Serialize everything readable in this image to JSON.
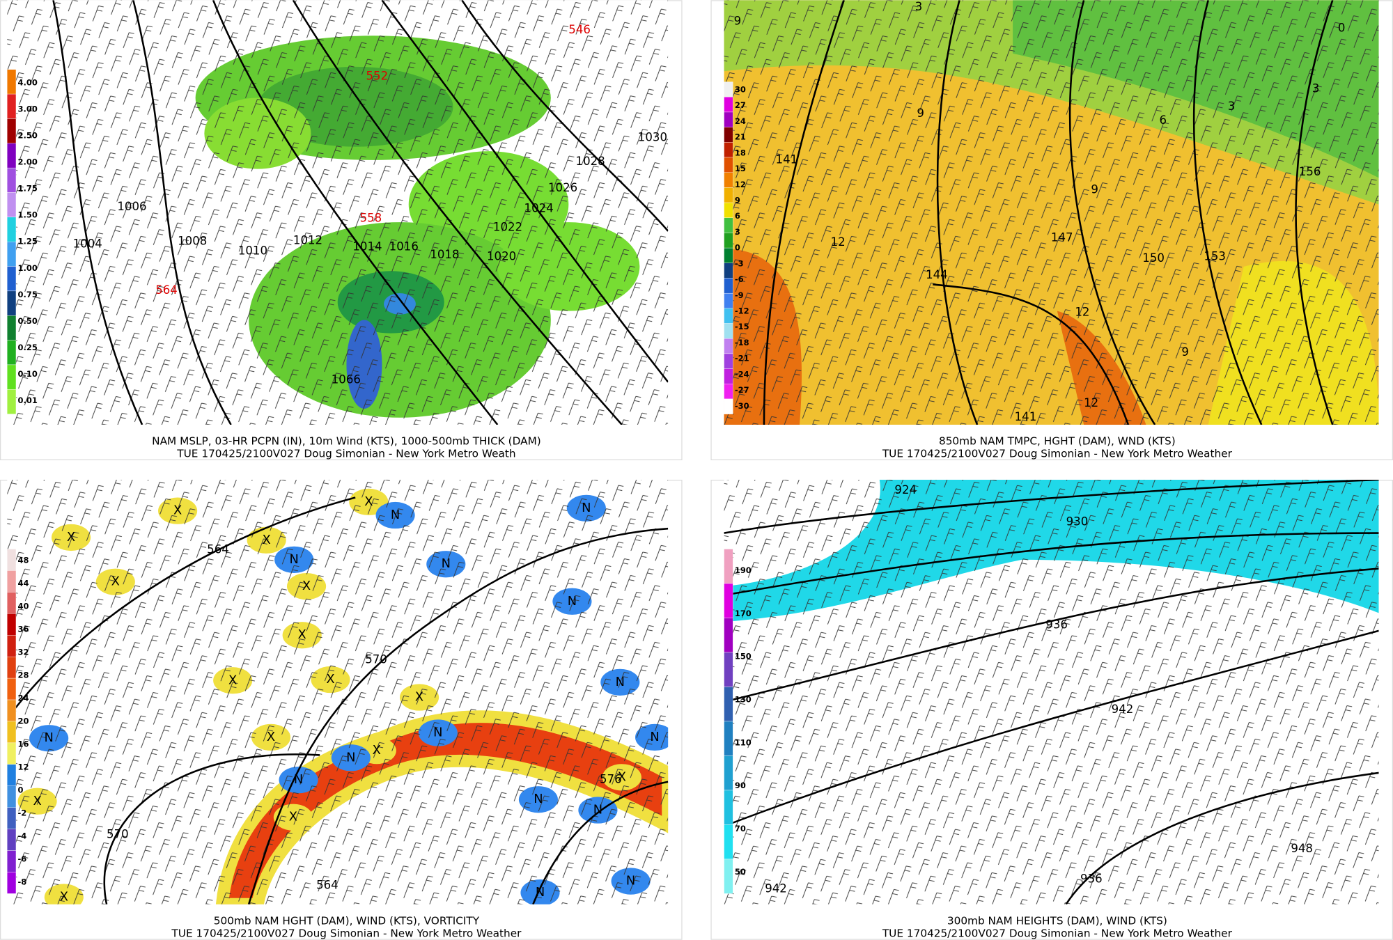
{
  "panels": [
    {
      "caption": "NAM MSLP, 03-HR PCPN (IN), 10m Wind (KTS), 1000-500mb THICK (DAM)",
      "subcaption": "TUE 170425/2100V027 Doug Simonian - New York Metro Weath",
      "colorbar": [
        "4.00",
        "3.00",
        "2.50",
        "2.00",
        "1.75",
        "1.50",
        "1.25",
        "1.00",
        "0.75",
        "0.50",
        "0.25",
        "0.10",
        "0.01"
      ],
      "contour_labels": [
        "546",
        "552",
        "558",
        "564",
        "1004",
        "1006",
        "1008",
        "1010",
        "1012",
        "1014",
        "1016",
        "1018",
        "1020",
        "1022",
        "1024",
        "1026",
        "1028",
        "1030",
        "1066"
      ]
    },
    {
      "caption": "850mb NAM TMPC, HGHT (DAM), WND (KTS)",
      "subcaption": "TUE 170425/2100V027 Doug Simonian - New York Metro Weather",
      "colorbar": [
        "30",
        "27",
        "24",
        "21",
        "18",
        "15",
        "12",
        "9",
        "6",
        "3",
        "0",
        "-3",
        "-6",
        "-9",
        "-12",
        "-15",
        "-18",
        "-21",
        "-24",
        "-27",
        "-30"
      ],
      "contour_labels": [
        "9",
        "141",
        "12",
        "144",
        "147",
        "150",
        "153",
        "156",
        "9",
        "9",
        "6",
        "3",
        "3",
        "0",
        "3",
        "12",
        "9",
        "12",
        "141"
      ]
    },
    {
      "caption": "500mb NAM HGHT (DAM), WIND (KTS), VORTICITY",
      "subcaption": "TUE 170425/2100V027 Doug Simonian - New York Metro Weather",
      "colorbar": [
        "48",
        "44",
        "40",
        "36",
        "32",
        "28",
        "24",
        "20",
        "16",
        "12",
        "0",
        "-2",
        "-4",
        "-6",
        "-8"
      ],
      "contour_labels": [
        "564",
        "570",
        "570",
        "576",
        "564"
      ],
      "markers": [
        "X",
        "X",
        "X",
        "X",
        "X",
        "X",
        "X",
        "X",
        "X",
        "X",
        "X",
        "X",
        "X",
        "X",
        "X",
        "X",
        "N",
        "N",
        "N",
        "N",
        "N",
        "N",
        "N",
        "N",
        "N",
        "N",
        "N",
        "N",
        "N",
        "N",
        "N"
      ]
    },
    {
      "caption": "300mb NAM HEIGHTS (DAM), WIND (KTS)",
      "subcaption": "TUE 170425/2100V027 Doug Simonian - New York Metro Weather",
      "colorbar": [
        "190",
        "170",
        "150",
        "130",
        "110",
        "90",
        "70",
        "50"
      ],
      "contour_labels": [
        "924",
        "930",
        "936",
        "942",
        "948",
        "942",
        "936"
      ]
    }
  ]
}
